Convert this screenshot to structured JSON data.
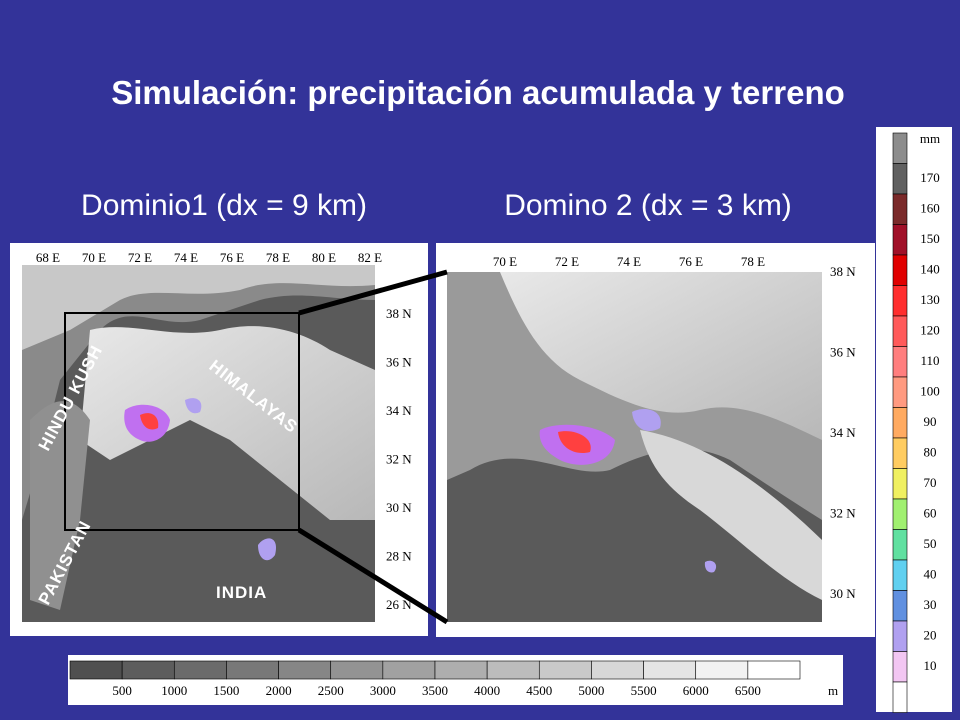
{
  "title": "Simulación: precipitación acumulada y terreno",
  "panels": [
    {
      "heading": "Dominio1 (dx = 9 km)",
      "lon_labels": [
        "68 E",
        "70 E",
        "72 E",
        "74 E",
        "76 E",
        "78 E",
        "80 E",
        "82 E"
      ],
      "lat_labels": [
        "38 N",
        "36 N",
        "34 N",
        "32 N",
        "30 N",
        "28 N",
        "26 N"
      ],
      "regions": [
        "HINDU KUSH",
        "HIMALAYAS",
        "PAKISTAN",
        "INDIA"
      ]
    },
    {
      "heading": "Domino 2 (dx = 3 km)",
      "lon_labels": [
        "70 E",
        "72 E",
        "74 E",
        "76 E",
        "78 E"
      ],
      "lat_labels": [
        "38 N",
        "36 N",
        "34 N",
        "32 N",
        "30 N"
      ]
    }
  ],
  "precip_legend": {
    "unit": "mm",
    "labels": [
      "170",
      "160",
      "150",
      "140",
      "130",
      "120",
      "110",
      "100",
      "90",
      "80",
      "70",
      "60",
      "50",
      "40",
      "30",
      "20",
      "10"
    ]
  },
  "terrain_legend": {
    "labels": [
      "500",
      "1000",
      "1500",
      "2000",
      "2500",
      "3000",
      "3500",
      "4000",
      "4500",
      "5000",
      "5500",
      "6000",
      "6500"
    ],
    "unit": "m"
  }
}
